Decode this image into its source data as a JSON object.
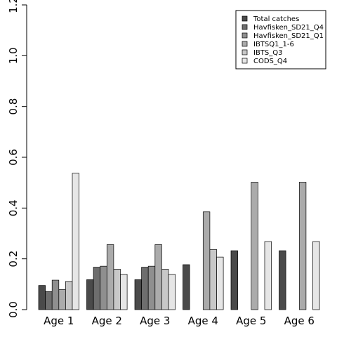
{
  "chart_data": {
    "type": "bar",
    "categories": [
      "Age 1",
      "Age 2",
      "Age 3",
      "Age 4",
      "Age 5",
      "Age 6"
    ],
    "series": [
      {
        "name": "Total catches",
        "color": "#4a4a4a",
        "values": [
          0.095,
          0.118,
          0.118,
          0.177,
          0.232,
          0.232
        ]
      },
      {
        "name": "Havfisken_SD21_Q4",
        "color": "#6e6e6e",
        "values": [
          0.071,
          0.167,
          0.167,
          0.0,
          0.0,
          0.0
        ]
      },
      {
        "name": "Havfisken_SD21_Q1",
        "color": "#8f8f8f",
        "values": [
          0.116,
          0.171,
          0.171,
          0.0,
          0.0,
          0.0
        ]
      },
      {
        "name": "IBTSQ1_1-6",
        "color": "#ababab",
        "values": [
          0.079,
          0.256,
          0.256,
          0.385,
          0.502,
          0.502
        ]
      },
      {
        "name": "IBTS_Q3",
        "color": "#c8c8c8",
        "values": [
          0.111,
          0.159,
          0.159,
          0.237,
          0.0,
          0.0
        ]
      },
      {
        "name": "CODS_Q4",
        "color": "#e6e6e6",
        "values": [
          0.537,
          0.139,
          0.139,
          0.207,
          0.268,
          0.268
        ]
      }
    ],
    "yticks": [
      "0.0",
      "0.2",
      "0.4",
      "0.6",
      "0.8",
      "1.0",
      "1.2"
    ],
    "ylim": [
      0,
      1.2
    ],
    "legend_position": "top-right",
    "grid": false
  }
}
